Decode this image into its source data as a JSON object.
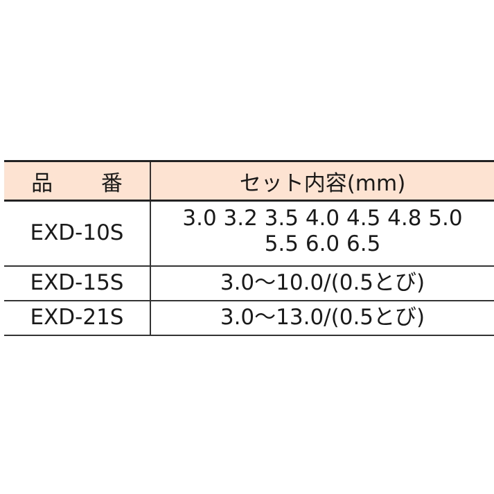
{
  "table": {
    "headers": [
      "品 番",
      "セット内容(mm)"
    ],
    "rows": [
      {
        "model": "EXD-10S",
        "contents_line1": "3.0 3.2 3.5 4.0 4.5 4.8 5.0",
        "contents_line2": "5.5 6.0 6.5"
      },
      {
        "model": "EXD-15S",
        "contents": "3.0〜10.0/(0.5とび)"
      },
      {
        "model": "EXD-21S",
        "contents": "3.0〜13.0/(0.5とび)"
      }
    ],
    "header_background": "#fde4d2"
  }
}
